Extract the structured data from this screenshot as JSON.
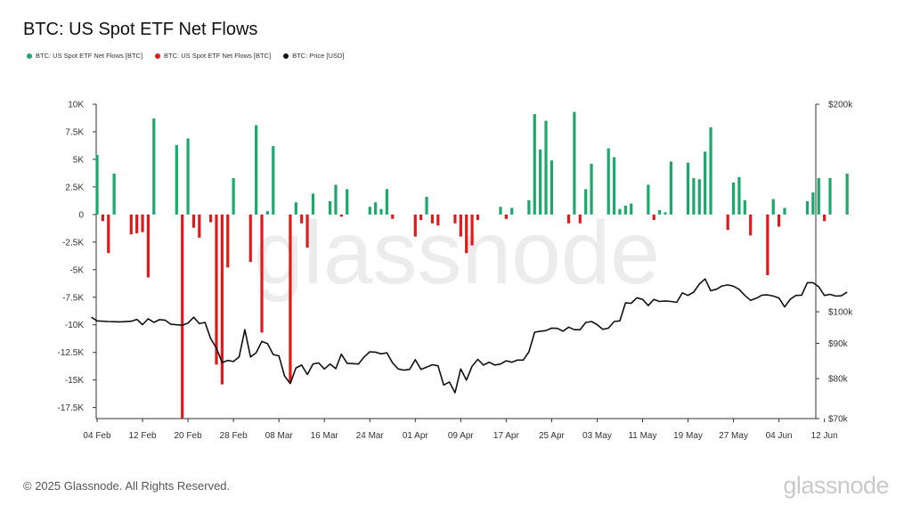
{
  "title": "BTC: US Spot ETF Net Flows",
  "legend": [
    {
      "label": "BTC: US Spot ETF Net Flows [BTC]",
      "color": "#1aa86b"
    },
    {
      "label": "BTC: US Spot ETF Net Flows [BTC]",
      "color": "#e01a1a"
    },
    {
      "label": "BTC: Price [USD]",
      "color": "#111111"
    }
  ],
  "watermark": "glassnode",
  "footer": {
    "copyright": "© 2025 Glassnode. All Rights Reserved.",
    "brand": "glassnode"
  },
  "chart_data": {
    "type": "bar",
    "title": "BTC: US Spot ETF Net Flows",
    "x_start": "2025-02-04",
    "x_ticks": [
      "04 Feb",
      "12 Feb",
      "20 Feb",
      "28 Feb",
      "08 Mar",
      "16 Mar",
      "24 Mar",
      "01 Apr",
      "09 Apr",
      "17 Apr",
      "25 Apr",
      "03 May",
      "11 May",
      "19 May",
      "27 May",
      "04 Jun",
      "12 Jun"
    ],
    "y_left": {
      "unit": "BTC",
      "min": -18500,
      "max": 10000,
      "ticks": [
        10000,
        7500,
        5000,
        2500,
        0,
        -2500,
        -5000,
        -7500,
        -10000,
        -12500,
        -15000,
        -17500
      ],
      "tick_labels": [
        "10K",
        "7.5K",
        "5K",
        "2.5K",
        "0",
        "-2.5K",
        "-5K",
        "-7.5K",
        "-10K",
        "-12.5K",
        "-15K",
        "-17.5K"
      ]
    },
    "y_right": {
      "unit": "USD",
      "scale": "log",
      "min": 70000,
      "max": 200000,
      "ticks": [
        200000,
        100000,
        90000,
        80000,
        70000
      ],
      "tick_labels": [
        "$200k",
        "$100k",
        "$90k",
        "$80k",
        "$70k"
      ]
    },
    "positive_color": "#1aa86b",
    "negative_color": "#e01a1a",
    "price_color": "#111111",
    "flows": [
      {
        "date": "2025-02-04",
        "value": 5400
      },
      {
        "date": "2025-02-05",
        "value": -600
      },
      {
        "date": "2025-02-06",
        "value": -3500
      },
      {
        "date": "2025-02-07",
        "value": 3700
      },
      {
        "date": "2025-02-10",
        "value": -1800
      },
      {
        "date": "2025-02-11",
        "value": -1700
      },
      {
        "date": "2025-02-12",
        "value": -1600
      },
      {
        "date": "2025-02-13",
        "value": -5700
      },
      {
        "date": "2025-02-14",
        "value": 8700
      },
      {
        "date": "2025-02-18",
        "value": 6300
      },
      {
        "date": "2025-02-19",
        "value": -18500
      },
      {
        "date": "2025-02-20",
        "value": 6900
      },
      {
        "date": "2025-02-21",
        "value": -1200
      },
      {
        "date": "2025-02-22",
        "value": -2100
      },
      {
        "date": "2025-02-24",
        "value": -700
      },
      {
        "date": "2025-02-25",
        "value": -13600
      },
      {
        "date": "2025-02-26",
        "value": -15400
      },
      {
        "date": "2025-02-27",
        "value": -4800
      },
      {
        "date": "2025-02-28",
        "value": 3300
      },
      {
        "date": "2025-03-03",
        "value": -4300
      },
      {
        "date": "2025-03-04",
        "value": 8100
      },
      {
        "date": "2025-03-05",
        "value": -10700
      },
      {
        "date": "2025-03-06",
        "value": 300
      },
      {
        "date": "2025-03-07",
        "value": 6200
      },
      {
        "date": "2025-03-10",
        "value": -15200
      },
      {
        "date": "2025-03-11",
        "value": 1100
      },
      {
        "date": "2025-03-12",
        "value": -800
      },
      {
        "date": "2025-03-13",
        "value": -3000
      },
      {
        "date": "2025-03-14",
        "value": 1900
      },
      {
        "date": "2025-03-17",
        "value": 1200
      },
      {
        "date": "2025-03-18",
        "value": 2700
      },
      {
        "date": "2025-03-19",
        "value": -200
      },
      {
        "date": "2025-03-20",
        "value": 2300
      },
      {
        "date": "2025-03-24",
        "value": 700
      },
      {
        "date": "2025-03-25",
        "value": 1100
      },
      {
        "date": "2025-03-26",
        "value": 500
      },
      {
        "date": "2025-03-27",
        "value": 2300
      },
      {
        "date": "2025-03-28",
        "value": -400
      },
      {
        "date": "2025-04-01",
        "value": -2000
      },
      {
        "date": "2025-04-02",
        "value": -500
      },
      {
        "date": "2025-04-03",
        "value": 1600
      },
      {
        "date": "2025-04-04",
        "value": -800
      },
      {
        "date": "2025-04-05",
        "value": -1000
      },
      {
        "date": "2025-04-08",
        "value": -800
      },
      {
        "date": "2025-04-09",
        "value": -2000
      },
      {
        "date": "2025-04-10",
        "value": -3500
      },
      {
        "date": "2025-04-11",
        "value": -2800
      },
      {
        "date": "2025-04-12",
        "value": -500
      },
      {
        "date": "2025-04-16",
        "value": 700
      },
      {
        "date": "2025-04-17",
        "value": -400
      },
      {
        "date": "2025-04-18",
        "value": 600
      },
      {
        "date": "2025-04-21",
        "value": 1300
      },
      {
        "date": "2025-04-22",
        "value": 9100
      },
      {
        "date": "2025-04-23",
        "value": 5900
      },
      {
        "date": "2025-04-24",
        "value": 8500
      },
      {
        "date": "2025-04-25",
        "value": 4900
      },
      {
        "date": "2025-04-28",
        "value": -800
      },
      {
        "date": "2025-04-29",
        "value": 9300
      },
      {
        "date": "2025-04-30",
        "value": -800
      },
      {
        "date": "2025-05-01",
        "value": 2300
      },
      {
        "date": "2025-05-02",
        "value": 4600
      },
      {
        "date": "2025-05-05",
        "value": 6000
      },
      {
        "date": "2025-05-06",
        "value": 5200
      },
      {
        "date": "2025-05-07",
        "value": 500
      },
      {
        "date": "2025-05-08",
        "value": 800
      },
      {
        "date": "2025-05-09",
        "value": 1000
      },
      {
        "date": "2025-05-12",
        "value": 2700
      },
      {
        "date": "2025-05-13",
        "value": -500
      },
      {
        "date": "2025-05-14",
        "value": 400
      },
      {
        "date": "2025-05-15",
        "value": 200
      },
      {
        "date": "2025-05-16",
        "value": 4800
      },
      {
        "date": "2025-05-19",
        "value": 4700
      },
      {
        "date": "2025-05-20",
        "value": 3300
      },
      {
        "date": "2025-05-21",
        "value": 3200
      },
      {
        "date": "2025-05-22",
        "value": 5700
      },
      {
        "date": "2025-05-23",
        "value": 7900
      },
      {
        "date": "2025-05-26",
        "value": -1400
      },
      {
        "date": "2025-05-27",
        "value": 2900
      },
      {
        "date": "2025-05-28",
        "value": 3400
      },
      {
        "date": "2025-05-29",
        "value": 1300
      },
      {
        "date": "2025-05-30",
        "value": -1900
      },
      {
        "date": "2025-06-02",
        "value": -5500
      },
      {
        "date": "2025-06-03",
        "value": 1400
      },
      {
        "date": "2025-06-04",
        "value": -1100
      },
      {
        "date": "2025-06-05",
        "value": 600
      },
      {
        "date": "2025-06-09",
        "value": 1200
      },
      {
        "date": "2025-06-10",
        "value": 2000
      },
      {
        "date": "2025-06-11",
        "value": 3300
      },
      {
        "date": "2025-06-12",
        "value": -600
      },
      {
        "date": "2025-06-13",
        "value": 3300
      },
      {
        "date": "2025-06-16",
        "value": 3700
      }
    ],
    "price": [
      {
        "date": "2025-02-03",
        "value": 98200
      },
      {
        "date": "2025-02-04",
        "value": 97000
      },
      {
        "date": "2025-02-06",
        "value": 96800
      },
      {
        "date": "2025-02-08",
        "value": 96700
      },
      {
        "date": "2025-02-10",
        "value": 96900
      },
      {
        "date": "2025-02-11",
        "value": 97500
      },
      {
        "date": "2025-02-12",
        "value": 95800
      },
      {
        "date": "2025-02-13",
        "value": 97700
      },
      {
        "date": "2025-02-14",
        "value": 96500
      },
      {
        "date": "2025-02-15",
        "value": 97400
      },
      {
        "date": "2025-02-16",
        "value": 97200
      },
      {
        "date": "2025-02-17",
        "value": 95900
      },
      {
        "date": "2025-02-19",
        "value": 95600
      },
      {
        "date": "2025-02-20",
        "value": 96300
      },
      {
        "date": "2025-02-21",
        "value": 98200
      },
      {
        "date": "2025-02-22",
        "value": 96100
      },
      {
        "date": "2025-02-23",
        "value": 96500
      },
      {
        "date": "2025-02-24",
        "value": 91400
      },
      {
        "date": "2025-02-25",
        "value": 88600
      },
      {
        "date": "2025-02-26",
        "value": 84400
      },
      {
        "date": "2025-02-27",
        "value": 85000
      },
      {
        "date": "2025-02-28",
        "value": 84700
      },
      {
        "date": "2025-03-01",
        "value": 86000
      },
      {
        "date": "2025-03-02",
        "value": 94200
      },
      {
        "date": "2025-03-03",
        "value": 86000
      },
      {
        "date": "2025-03-04",
        "value": 87200
      },
      {
        "date": "2025-03-05",
        "value": 90600
      },
      {
        "date": "2025-03-06",
        "value": 89900
      },
      {
        "date": "2025-03-07",
        "value": 86700
      },
      {
        "date": "2025-03-08",
        "value": 86300
      },
      {
        "date": "2025-03-09",
        "value": 80700
      },
      {
        "date": "2025-03-10",
        "value": 78700
      },
      {
        "date": "2025-03-11",
        "value": 82900
      },
      {
        "date": "2025-03-12",
        "value": 83700
      },
      {
        "date": "2025-03-13",
        "value": 81100
      },
      {
        "date": "2025-03-14",
        "value": 84000
      },
      {
        "date": "2025-03-15",
        "value": 84300
      },
      {
        "date": "2025-03-16",
        "value": 82600
      },
      {
        "date": "2025-03-17",
        "value": 84000
      },
      {
        "date": "2025-03-18",
        "value": 82700
      },
      {
        "date": "2025-03-19",
        "value": 86800
      },
      {
        "date": "2025-03-20",
        "value": 84200
      },
      {
        "date": "2025-03-21",
        "value": 84100
      },
      {
        "date": "2025-03-22",
        "value": 84000
      },
      {
        "date": "2025-03-23",
        "value": 86000
      },
      {
        "date": "2025-03-24",
        "value": 87500
      },
      {
        "date": "2025-03-25",
        "value": 87400
      },
      {
        "date": "2025-03-26",
        "value": 86900
      },
      {
        "date": "2025-03-27",
        "value": 87200
      },
      {
        "date": "2025-03-28",
        "value": 84300
      },
      {
        "date": "2025-03-29",
        "value": 82600
      },
      {
        "date": "2025-03-30",
        "value": 82300
      },
      {
        "date": "2025-03-31",
        "value": 82500
      },
      {
        "date": "2025-04-01",
        "value": 85200
      },
      {
        "date": "2025-04-02",
        "value": 82500
      },
      {
        "date": "2025-04-03",
        "value": 83100
      },
      {
        "date": "2025-04-04",
        "value": 83800
      },
      {
        "date": "2025-04-05",
        "value": 83500
      },
      {
        "date": "2025-04-06",
        "value": 78300
      },
      {
        "date": "2025-04-07",
        "value": 79100
      },
      {
        "date": "2025-04-08",
        "value": 76300
      },
      {
        "date": "2025-04-09",
        "value": 82600
      },
      {
        "date": "2025-04-10",
        "value": 79600
      },
      {
        "date": "2025-04-11",
        "value": 83400
      },
      {
        "date": "2025-04-12",
        "value": 85300
      },
      {
        "date": "2025-04-13",
        "value": 83700
      },
      {
        "date": "2025-04-14",
        "value": 84500
      },
      {
        "date": "2025-04-15",
        "value": 83700
      },
      {
        "date": "2025-04-16",
        "value": 84000
      },
      {
        "date": "2025-04-17",
        "value": 84900
      },
      {
        "date": "2025-04-18",
        "value": 84500
      },
      {
        "date": "2025-04-19",
        "value": 85100
      },
      {
        "date": "2025-04-20",
        "value": 85100
      },
      {
        "date": "2025-04-21",
        "value": 87500
      },
      {
        "date": "2025-04-22",
        "value": 93400
      },
      {
        "date": "2025-04-23",
        "value": 93700
      },
      {
        "date": "2025-04-24",
        "value": 93900
      },
      {
        "date": "2025-04-25",
        "value": 94700
      },
      {
        "date": "2025-04-26",
        "value": 94600
      },
      {
        "date": "2025-04-27",
        "value": 93700
      },
      {
        "date": "2025-04-28",
        "value": 95000
      },
      {
        "date": "2025-04-29",
        "value": 94200
      },
      {
        "date": "2025-04-30",
        "value": 94200
      },
      {
        "date": "2025-05-01",
        "value": 96500
      },
      {
        "date": "2025-05-02",
        "value": 96800
      },
      {
        "date": "2025-05-03",
        "value": 95800
      },
      {
        "date": "2025-05-04",
        "value": 94300
      },
      {
        "date": "2025-05-05",
        "value": 94700
      },
      {
        "date": "2025-05-06",
        "value": 96800
      },
      {
        "date": "2025-05-07",
        "value": 97000
      },
      {
        "date": "2025-05-08",
        "value": 103000
      },
      {
        "date": "2025-05-09",
        "value": 102900
      },
      {
        "date": "2025-05-10",
        "value": 104800
      },
      {
        "date": "2025-05-11",
        "value": 104200
      },
      {
        "date": "2025-05-12",
        "value": 102100
      },
      {
        "date": "2025-05-13",
        "value": 104200
      },
      {
        "date": "2025-05-14",
        "value": 103500
      },
      {
        "date": "2025-05-15",
        "value": 103700
      },
      {
        "date": "2025-05-16",
        "value": 103500
      },
      {
        "date": "2025-05-17",
        "value": 103200
      },
      {
        "date": "2025-05-18",
        "value": 106500
      },
      {
        "date": "2025-05-19",
        "value": 105600
      },
      {
        "date": "2025-05-20",
        "value": 106800
      },
      {
        "date": "2025-05-21",
        "value": 109700
      },
      {
        "date": "2025-05-22",
        "value": 111600
      },
      {
        "date": "2025-05-23",
        "value": 107300
      },
      {
        "date": "2025-05-24",
        "value": 107800
      },
      {
        "date": "2025-05-25",
        "value": 109000
      },
      {
        "date": "2025-05-26",
        "value": 109400
      },
      {
        "date": "2025-05-27",
        "value": 108900
      },
      {
        "date": "2025-05-28",
        "value": 107800
      },
      {
        "date": "2025-05-29",
        "value": 105600
      },
      {
        "date": "2025-05-30",
        "value": 103900
      },
      {
        "date": "2025-05-31",
        "value": 104600
      },
      {
        "date": "2025-06-01",
        "value": 105700
      },
      {
        "date": "2025-06-02",
        "value": 105800
      },
      {
        "date": "2025-06-03",
        "value": 105400
      },
      {
        "date": "2025-06-04",
        "value": 104700
      },
      {
        "date": "2025-06-05",
        "value": 101600
      },
      {
        "date": "2025-06-06",
        "value": 104300
      },
      {
        "date": "2025-06-07",
        "value": 105600
      },
      {
        "date": "2025-06-08",
        "value": 105700
      },
      {
        "date": "2025-06-09",
        "value": 110200
      },
      {
        "date": "2025-06-10",
        "value": 110200
      },
      {
        "date": "2025-06-11",
        "value": 108700
      },
      {
        "date": "2025-06-12",
        "value": 105600
      },
      {
        "date": "2025-06-13",
        "value": 106000
      },
      {
        "date": "2025-06-14",
        "value": 105400
      },
      {
        "date": "2025-06-15",
        "value": 105500
      },
      {
        "date": "2025-06-16",
        "value": 106800
      }
    ]
  }
}
